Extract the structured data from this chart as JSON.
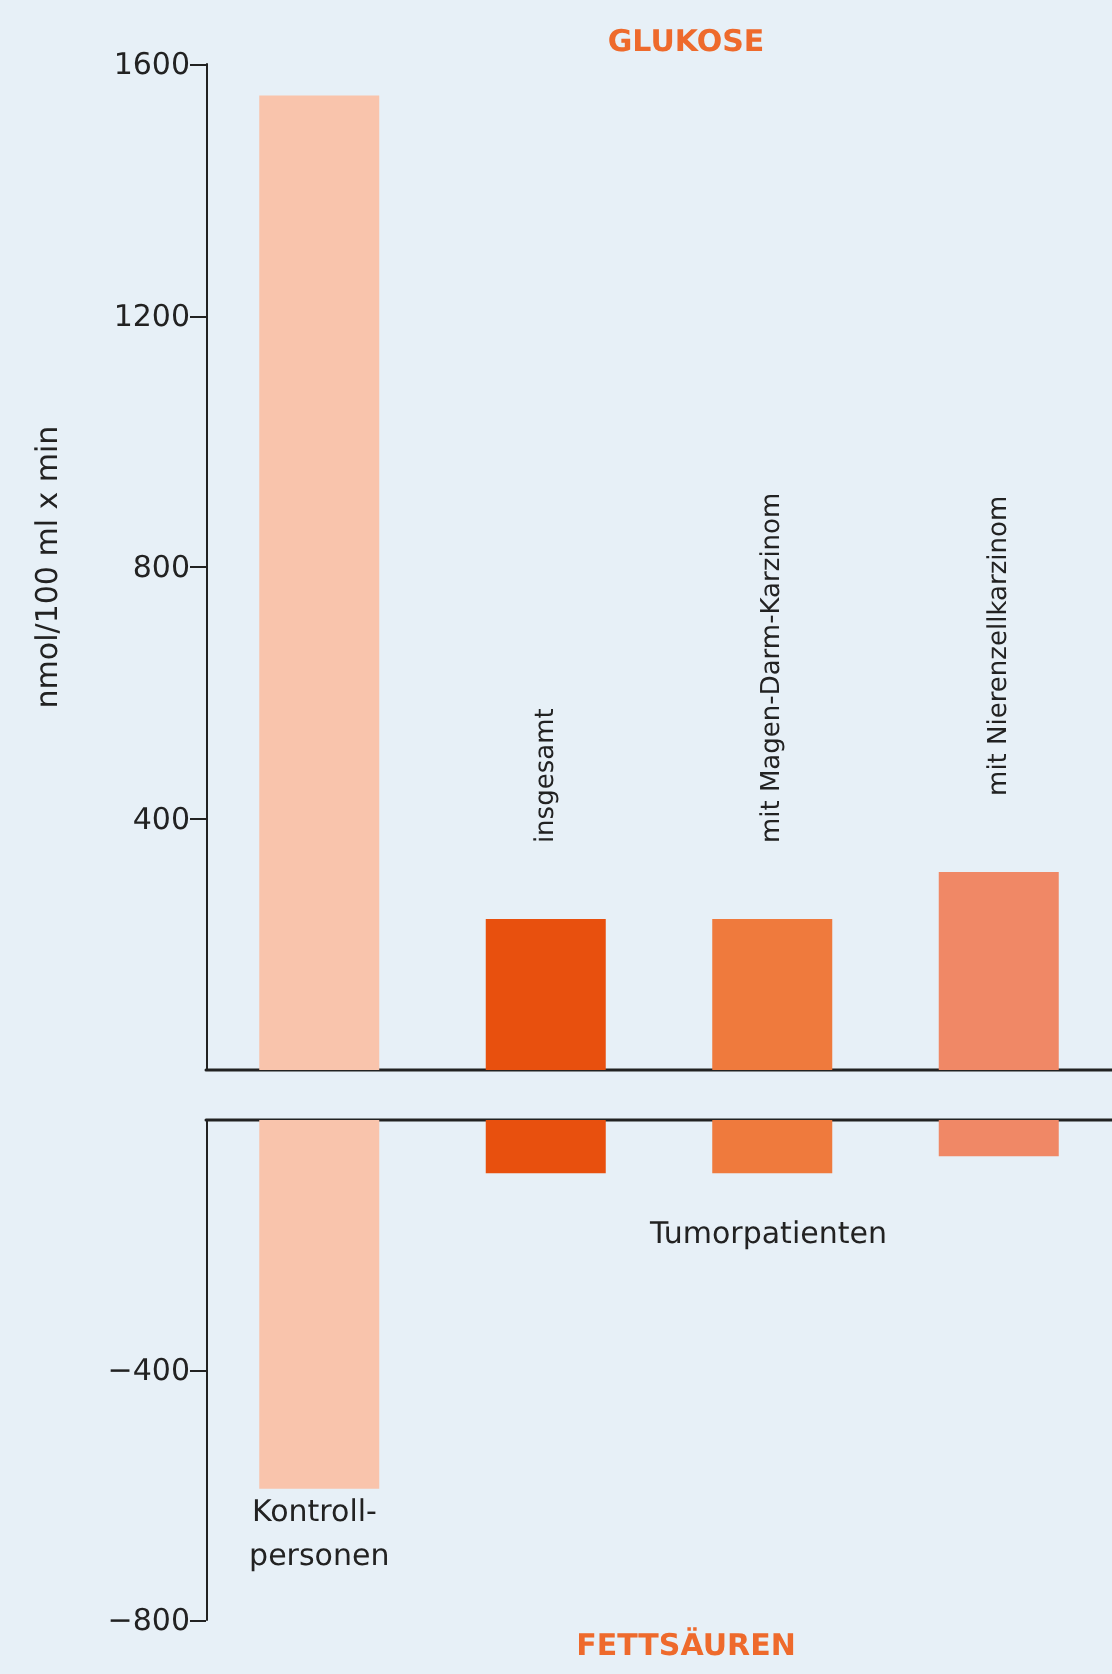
{
  "chart_data": [
    {
      "type": "bar",
      "title": "GLUKOSE",
      "ylabel": "nmol/100 ml x min",
      "categories": [
        null,
        "insgesamt",
        "mit Magen-Darm-Karzinom",
        "mit Nierenzellkarzinom"
      ],
      "values": [
        1550,
        240,
        240,
        315
      ],
      "colors": [
        "#f9c4ac",
        "#e8500e",
        "#ef7a3d",
        "#f08866"
      ],
      "ylim": [
        0,
        1600
      ],
      "yticks": [
        400,
        800,
        1200,
        1600
      ],
      "grid": false
    },
    {
      "type": "bar",
      "title": "FETTSÄUREN",
      "categories": [
        "Kontroll- personen",
        null,
        null,
        null
      ],
      "values": [
        -590,
        -85,
        -85,
        -58
      ],
      "colors": [
        "#f9c4ac",
        "#e8500e",
        "#ef7a3d",
        "#f08866"
      ],
      "ylim": [
        -800,
        0
      ],
      "yticks": [
        {
          "value": -400,
          "label": "−400"
        },
        {
          "value": -800,
          "label": "−800"
        }
      ],
      "grid": false,
      "annotations": [
        "Tumorpatienten"
      ]
    }
  ]
}
